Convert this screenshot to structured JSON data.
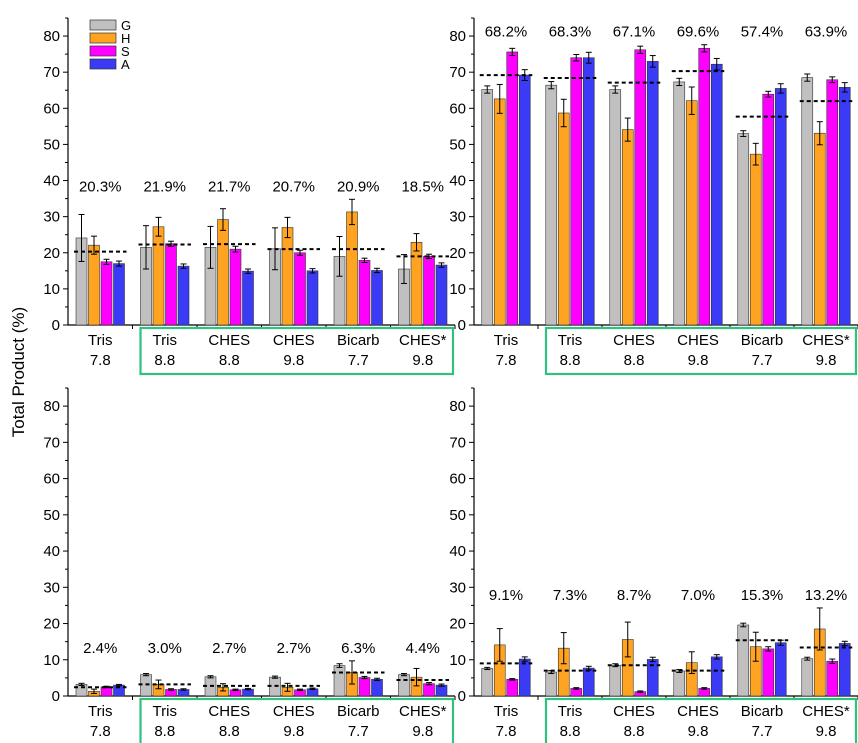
{
  "figure": {
    "ylabel": "Total Product (%)",
    "legend": {
      "placement": "top-left",
      "entries": [
        {
          "name": "G",
          "color": "#c0c0c0"
        },
        {
          "name": "H",
          "color": "#ffa321"
        },
        {
          "name": "S",
          "color": "#ff00ff"
        },
        {
          "name": "A",
          "color": "#3b3bf5"
        }
      ]
    },
    "highlight_color": "#2ec27e"
  },
  "chart_data": [
    {
      "type": "bar",
      "panel": "top-left",
      "title": "",
      "ylim": [
        0,
        85
      ],
      "yticks": [
        0,
        10,
        20,
        30,
        40,
        50,
        60,
        70,
        80
      ],
      "categories": [
        {
          "line1": "Tris",
          "line2": "7.8"
        },
        {
          "line1": "Tris",
          "line2": "8.8"
        },
        {
          "line1": "CHES",
          "line2": "8.8"
        },
        {
          "line1": "CHES",
          "line2": "9.8"
        },
        {
          "line1": "Bicarb",
          "line2": "7.7"
        },
        {
          "line1": "CHES*",
          "line2": "9.8"
        }
      ],
      "highlighted_categories": [
        1,
        5
      ],
      "totals": [
        "20.3%",
        "21.9%",
        "21.7%",
        "20.7%",
        "20.9%",
        "18.5%"
      ],
      "averages": [
        20.3,
        22.3,
        22.4,
        21.0,
        21.0,
        19.0
      ],
      "series": [
        {
          "name": "G",
          "values": [
            24.1,
            21.5,
            21.5,
            21.1,
            19.0,
            15.5
          ],
          "errors": [
            6.5,
            6.0,
            5.8,
            5.8,
            5.5,
            4.0
          ]
        },
        {
          "name": "H",
          "values": [
            22.1,
            27.2,
            29.2,
            27.0,
            31.3,
            22.9
          ],
          "errors": [
            2.5,
            2.6,
            3.0,
            2.8,
            3.5,
            2.4
          ]
        },
        {
          "name": "S",
          "values": [
            17.5,
            22.5,
            21.0,
            20.0,
            17.9,
            19.0
          ],
          "errors": [
            0.7,
            0.7,
            0.8,
            0.7,
            0.6,
            0.6
          ]
        },
        {
          "name": "A",
          "values": [
            17.0,
            16.3,
            14.9,
            15.0,
            15.1,
            16.6
          ],
          "errors": [
            0.7,
            0.6,
            0.6,
            0.6,
            0.6,
            0.6
          ]
        }
      ]
    },
    {
      "type": "bar",
      "panel": "top-right",
      "title": "",
      "ylim": [
        0,
        85
      ],
      "yticks": [
        0,
        10,
        20,
        30,
        40,
        50,
        60,
        70,
        80
      ],
      "categories": [
        {
          "line1": "Tris",
          "line2": "7.8"
        },
        {
          "line1": "Tris",
          "line2": "8.8"
        },
        {
          "line1": "CHES",
          "line2": "8.8"
        },
        {
          "line1": "CHES",
          "line2": "9.8"
        },
        {
          "line1": "Bicarb",
          "line2": "7.7"
        },
        {
          "line1": "CHES*",
          "line2": "9.8"
        }
      ],
      "highlighted_categories": [
        1,
        5
      ],
      "totals": [
        "68.2%",
        "68.3%",
        "67.1%",
        "69.6%",
        "57.4%",
        "63.9%"
      ],
      "averages": [
        69.2,
        68.4,
        67.1,
        70.3,
        57.7,
        62.0
      ],
      "series": [
        {
          "name": "G",
          "values": [
            65.2,
            66.4,
            65.2,
            67.3,
            53.0,
            68.5
          ],
          "errors": [
            1.0,
            1.0,
            1.0,
            1.0,
            0.8,
            1.0
          ]
        },
        {
          "name": "H",
          "values": [
            62.6,
            58.7,
            54.1,
            62.1,
            47.3,
            53.1
          ],
          "errors": [
            4.0,
            3.8,
            3.2,
            3.8,
            3.0,
            3.2
          ]
        },
        {
          "name": "S",
          "values": [
            75.6,
            74.0,
            76.2,
            76.6,
            63.9,
            67.9
          ],
          "errors": [
            1.0,
            0.9,
            1.0,
            1.0,
            0.8,
            0.8
          ]
        },
        {
          "name": "A",
          "values": [
            69.2,
            74.0,
            73.0,
            72.2,
            65.5,
            65.8
          ],
          "errors": [
            1.5,
            1.5,
            1.6,
            1.6,
            1.3,
            1.3
          ]
        }
      ]
    },
    {
      "type": "bar",
      "panel": "bottom-left",
      "title": "",
      "ylim": [
        0,
        85
      ],
      "yticks": [
        0,
        10,
        20,
        30,
        40,
        50,
        60,
        70,
        80
      ],
      "categories": [
        {
          "line1": "Tris",
          "line2": "7.8"
        },
        {
          "line1": "Tris",
          "line2": "8.8"
        },
        {
          "line1": "CHES",
          "line2": "8.8"
        },
        {
          "line1": "CHES",
          "line2": "9.8"
        },
        {
          "line1": "Bicarb",
          "line2": "7.7"
        },
        {
          "line1": "CHES*",
          "line2": "9.8"
        }
      ],
      "highlighted_categories": [
        1,
        5
      ],
      "totals": [
        "2.4%",
        "3.0%",
        "2.7%",
        "2.7%",
        "6.3%",
        "4.4%"
      ],
      "averages": [
        2.4,
        3.2,
        2.8,
        2.8,
        6.5,
        4.4
      ],
      "series": [
        {
          "name": "G",
          "values": [
            3.2,
            5.9,
            5.3,
            5.2,
            8.4,
            5.9
          ],
          "errors": [
            0.3,
            0.3,
            0.3,
            0.3,
            0.5,
            0.3
          ]
        },
        {
          "name": "H",
          "values": [
            1.3,
            3.2,
            2.4,
            2.4,
            6.5,
            5.2
          ],
          "errors": [
            0.6,
            1.2,
            1.0,
            1.1,
            3.2,
            2.4
          ]
        },
        {
          "name": "S",
          "values": [
            2.5,
            1.8,
            1.7,
            1.7,
            5.1,
            3.4
          ],
          "errors": [
            0.2,
            0.2,
            0.2,
            0.2,
            0.3,
            0.3
          ]
        },
        {
          "name": "A",
          "values": [
            3.0,
            1.8,
            1.9,
            2.0,
            4.6,
            3.0
          ],
          "errors": [
            0.2,
            0.2,
            0.2,
            0.2,
            0.3,
            0.3
          ]
        }
      ]
    },
    {
      "type": "bar",
      "panel": "bottom-right",
      "title": "",
      "ylim": [
        0,
        85
      ],
      "yticks": [
        0,
        10,
        20,
        30,
        40,
        50,
        60,
        70,
        80
      ],
      "categories": [
        {
          "line1": "Tris",
          "line2": "7.8"
        },
        {
          "line1": "Tris",
          "line2": "8.8"
        },
        {
          "line1": "CHES",
          "line2": "8.8"
        },
        {
          "line1": "CHES",
          "line2": "9.8"
        },
        {
          "line1": "Bicarb",
          "line2": "7.7"
        },
        {
          "line1": "CHES*",
          "line2": "9.8"
        }
      ],
      "highlighted_categories": [
        1,
        5
      ],
      "totals": [
        "9.1%",
        "7.3%",
        "8.7%",
        "7.0%",
        "15.3%",
        "13.2%"
      ],
      "averages": [
        9.0,
        7.0,
        8.5,
        7.0,
        15.4,
        13.4
      ],
      "series": [
        {
          "name": "G",
          "values": [
            7.6,
            6.6,
            8.5,
            6.9,
            19.6,
            10.3
          ],
          "errors": [
            0.3,
            0.4,
            0.4,
            0.4,
            0.5,
            0.4
          ]
        },
        {
          "name": "H",
          "values": [
            14.1,
            13.2,
            15.6,
            9.2,
            13.6,
            18.5
          ],
          "errors": [
            4.5,
            4.3,
            4.8,
            3.0,
            4.0,
            5.8
          ]
        },
        {
          "name": "S",
          "values": [
            4.6,
            2.1,
            1.2,
            2.1,
            13.0,
            9.6
          ],
          "errors": [
            0.2,
            0.2,
            0.2,
            0.2,
            0.6,
            0.6
          ]
        },
        {
          "name": "A",
          "values": [
            10.2,
            7.7,
            10.1,
            10.8,
            14.7,
            14.5
          ],
          "errors": [
            0.6,
            0.5,
            0.6,
            0.6,
            0.7,
            0.6
          ]
        }
      ]
    }
  ]
}
